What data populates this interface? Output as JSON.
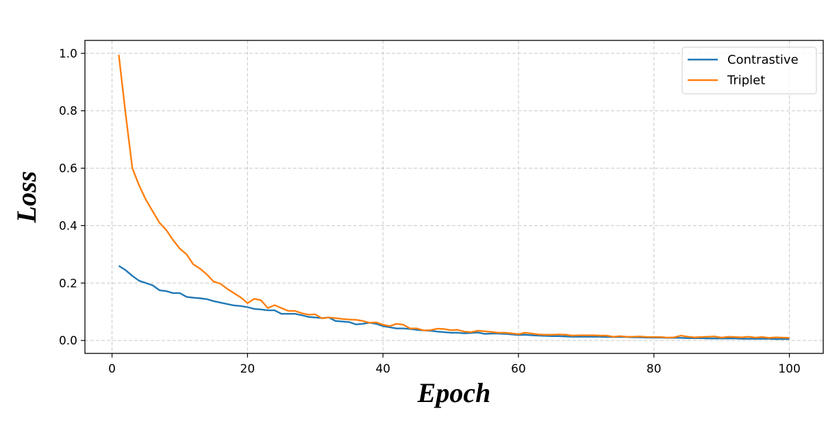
{
  "chart_data": {
    "type": "line",
    "title": "",
    "xlabel": "Epoch",
    "ylabel": "Loss",
    "xlim": [
      -4,
      105
    ],
    "ylim": [
      -0.045,
      1.045
    ],
    "xticks": [
      0,
      20,
      40,
      60,
      80,
      100
    ],
    "yticks": [
      0.0,
      0.2,
      0.4,
      0.6,
      0.8,
      1.0
    ],
    "xtick_labels": [
      "0",
      "20",
      "40",
      "60",
      "80",
      "100"
    ],
    "ytick_labels": [
      "0.0",
      "0.2",
      "0.4",
      "0.6",
      "0.8",
      "1.0"
    ],
    "grid": true,
    "legend_position": "top-right",
    "x": [
      1,
      2,
      3,
      4,
      5,
      6,
      7,
      8,
      9,
      10,
      11,
      12,
      13,
      14,
      15,
      16,
      17,
      18,
      19,
      20,
      21,
      22,
      23,
      24,
      25,
      26,
      27,
      28,
      29,
      30,
      31,
      32,
      33,
      34,
      35,
      36,
      37,
      38,
      39,
      40,
      41,
      42,
      43,
      44,
      45,
      46,
      47,
      48,
      49,
      50,
      51,
      52,
      53,
      54,
      55,
      56,
      57,
      58,
      59,
      60,
      61,
      62,
      63,
      64,
      65,
      66,
      67,
      68,
      69,
      70,
      71,
      72,
      73,
      74,
      75,
      76,
      77,
      78,
      79,
      80,
      81,
      82,
      83,
      84,
      85,
      86,
      87,
      88,
      89,
      90,
      91,
      92,
      93,
      94,
      95,
      96,
      97,
      98,
      99,
      100
    ],
    "series": [
      {
        "name": "Contrastive",
        "color": "#1f77b4",
        "values": [
          0.26,
          0.245,
          0.225,
          0.208,
          0.2,
          0.192,
          0.175,
          0.172,
          0.165,
          0.165,
          0.152,
          0.149,
          0.147,
          0.144,
          0.137,
          0.132,
          0.127,
          0.122,
          0.12,
          0.116,
          0.11,
          0.108,
          0.105,
          0.105,
          0.093,
          0.093,
          0.093,
          0.088,
          0.082,
          0.08,
          0.078,
          0.08,
          0.068,
          0.066,
          0.064,
          0.056,
          0.058,
          0.062,
          0.058,
          0.05,
          0.046,
          0.042,
          0.042,
          0.04,
          0.037,
          0.035,
          0.034,
          0.031,
          0.029,
          0.027,
          0.027,
          0.025,
          0.026,
          0.028,
          0.023,
          0.024,
          0.024,
          0.023,
          0.021,
          0.019,
          0.02,
          0.018,
          0.017,
          0.016,
          0.015,
          0.015,
          0.014,
          0.013,
          0.013,
          0.013,
          0.013,
          0.013,
          0.012,
          0.012,
          0.012,
          0.012,
          0.011,
          0.011,
          0.01,
          0.01,
          0.01,
          0.009,
          0.009,
          0.009,
          0.008,
          0.008,
          0.008,
          0.007,
          0.007,
          0.007,
          0.007,
          0.007,
          0.006,
          0.006,
          0.006,
          0.006,
          0.006,
          0.005,
          0.005,
          0.005
        ]
      },
      {
        "name": "Triplet",
        "color": "#ff7f0e",
        "values": [
          0.995,
          0.79,
          0.6,
          0.54,
          0.49,
          0.45,
          0.41,
          0.385,
          0.35,
          0.32,
          0.3,
          0.265,
          0.25,
          0.23,
          0.205,
          0.198,
          0.18,
          0.165,
          0.15,
          0.13,
          0.145,
          0.14,
          0.113,
          0.123,
          0.113,
          0.103,
          0.103,
          0.095,
          0.09,
          0.091,
          0.077,
          0.08,
          0.078,
          0.075,
          0.073,
          0.072,
          0.068,
          0.062,
          0.063,
          0.055,
          0.05,
          0.058,
          0.055,
          0.042,
          0.042,
          0.035,
          0.036,
          0.041,
          0.04,
          0.036,
          0.037,
          0.031,
          0.029,
          0.034,
          0.032,
          0.03,
          0.027,
          0.027,
          0.025,
          0.022,
          0.027,
          0.024,
          0.021,
          0.02,
          0.02,
          0.021,
          0.02,
          0.017,
          0.018,
          0.018,
          0.018,
          0.017,
          0.017,
          0.013,
          0.015,
          0.013,
          0.013,
          0.014,
          0.012,
          0.012,
          0.012,
          0.01,
          0.011,
          0.017,
          0.013,
          0.011,
          0.012,
          0.013,
          0.014,
          0.01,
          0.013,
          0.012,
          0.011,
          0.013,
          0.01,
          0.012,
          0.009,
          0.011,
          0.01,
          0.009
        ]
      }
    ]
  }
}
